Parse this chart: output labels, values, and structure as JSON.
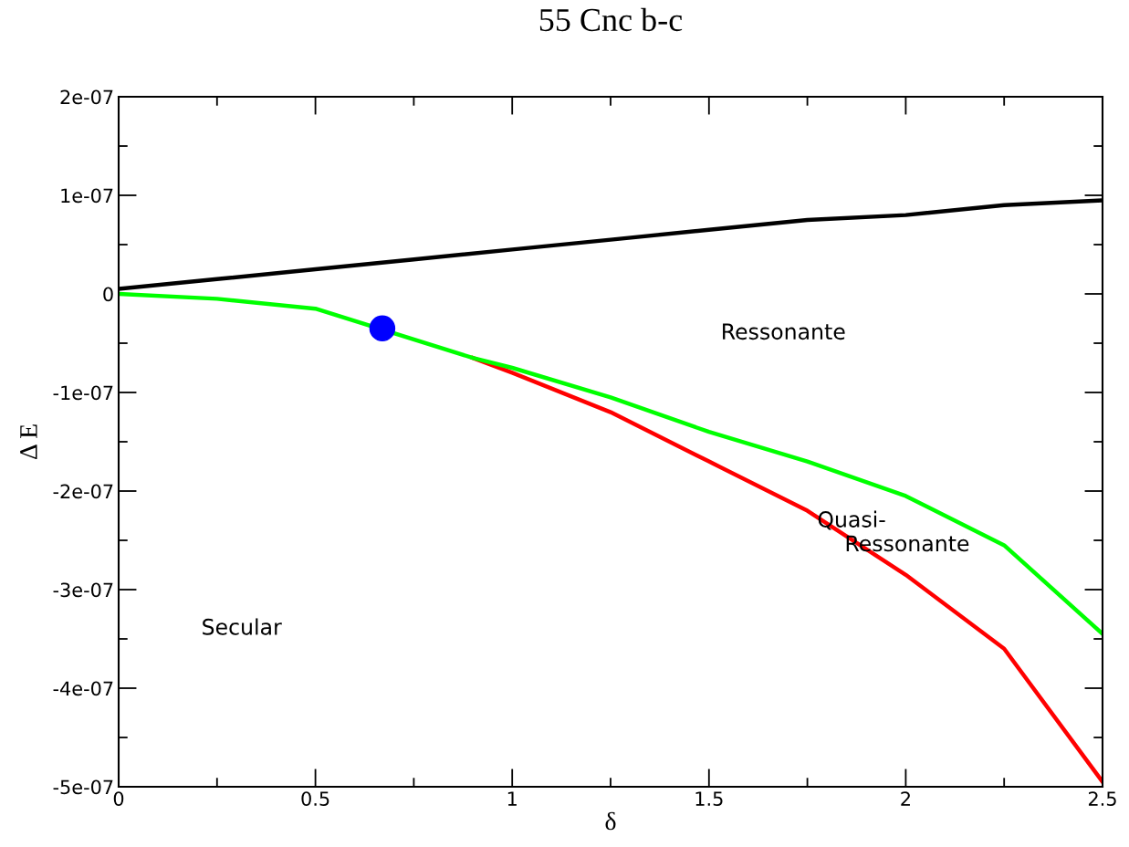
{
  "chart_data": {
    "type": "line",
    "title": "55 Cnc b-c",
    "xlabel": "δ",
    "ylabel": "Δ E",
    "xlim": [
      0,
      2.5
    ],
    "xticks": [
      0,
      0.5,
      1,
      1.5,
      2,
      2.5
    ],
    "ylim": [
      -5e-07,
      2e-07
    ],
    "yticks": [
      {
        "value": -5e-07,
        "label": "-5e-07"
      },
      {
        "value": -4e-07,
        "label": "-4e-07"
      },
      {
        "value": -3e-07,
        "label": "-3e-07"
      },
      {
        "value": -2e-07,
        "label": "-2e-07"
      },
      {
        "value": -1e-07,
        "label": "-1e-07"
      },
      {
        "value": 0,
        "label": "0"
      },
      {
        "value": 1e-07,
        "label": "1e-07"
      },
      {
        "value": 2e-07,
        "label": "2e-07"
      }
    ],
    "grid": false,
    "legend": false,
    "series": [
      {
        "color": "#000000",
        "x": [
          0,
          0.25,
          0.5,
          0.75,
          1.0,
          1.25,
          1.5,
          1.75,
          2.0,
          2.25,
          2.5
        ],
        "values": [
          5e-09,
          1.5e-08,
          2.5e-08,
          3.5e-08,
          4.5e-08,
          5.5e-08,
          6.5e-08,
          7.5e-08,
          8e-08,
          9e-08,
          9.5e-08
        ]
      },
      {
        "color": "#ff0000",
        "x": [
          0.9,
          1.0,
          1.25,
          1.5,
          1.75,
          2.0,
          2.25,
          2.5
        ],
        "values": [
          -6.5e-08,
          -8e-08,
          -1.2e-07,
          -1.7e-07,
          -2.2e-07,
          -2.85e-07,
          -3.6e-07,
          -4.95e-07
        ]
      },
      {
        "color": "#00ff00",
        "x": [
          0,
          0.25,
          0.5,
          0.9,
          1.0,
          1.25,
          1.5,
          1.75,
          2.0,
          2.25,
          2.5
        ],
        "values": [
          0,
          -5e-09,
          -1.5e-08,
          -6.5e-08,
          -7.5e-08,
          -1.05e-07,
          -1.4e-07,
          -1.7e-07,
          -2.05e-07,
          -2.55e-07,
          -3.45e-07
        ]
      },
      {
        "type": "scatter",
        "color": "#0000ff",
        "marker": "circle",
        "x": [
          0.67
        ],
        "values": [
          -3.5e-08
        ]
      }
    ],
    "annotations": [
      "Ressonante",
      "Secular",
      "Quasi-\n    Ressonante"
    ]
  }
}
